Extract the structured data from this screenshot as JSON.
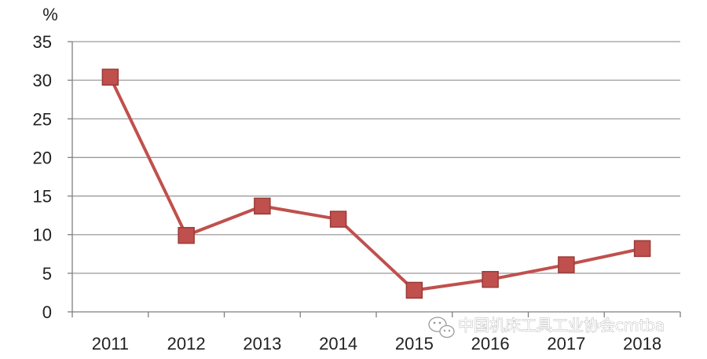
{
  "chart_data": {
    "type": "line",
    "title": "",
    "xlabel": "",
    "ylabel": "%",
    "categories": [
      "2011",
      "2012",
      "2013",
      "2014",
      "2015",
      "2016",
      "2017",
      "2018"
    ],
    "series": [
      {
        "name": "",
        "values": [
          30.4,
          9.9,
          13.7,
          12.0,
          2.8,
          4.2,
          6.1,
          8.2
        ]
      }
    ],
    "ylim": [
      0,
      35
    ],
    "yticks": [
      0,
      5,
      10,
      15,
      20,
      25,
      30,
      35
    ],
    "grid": true,
    "legend": "none",
    "colors": {
      "series": "#c0504d",
      "marker_stroke": "#9b3a37",
      "grid": "#9a9a9a",
      "axis": "#7f7f7f"
    }
  },
  "watermark": {
    "text": "中国机床工具工业协会cmtba",
    "icon": "wechat-icon"
  }
}
